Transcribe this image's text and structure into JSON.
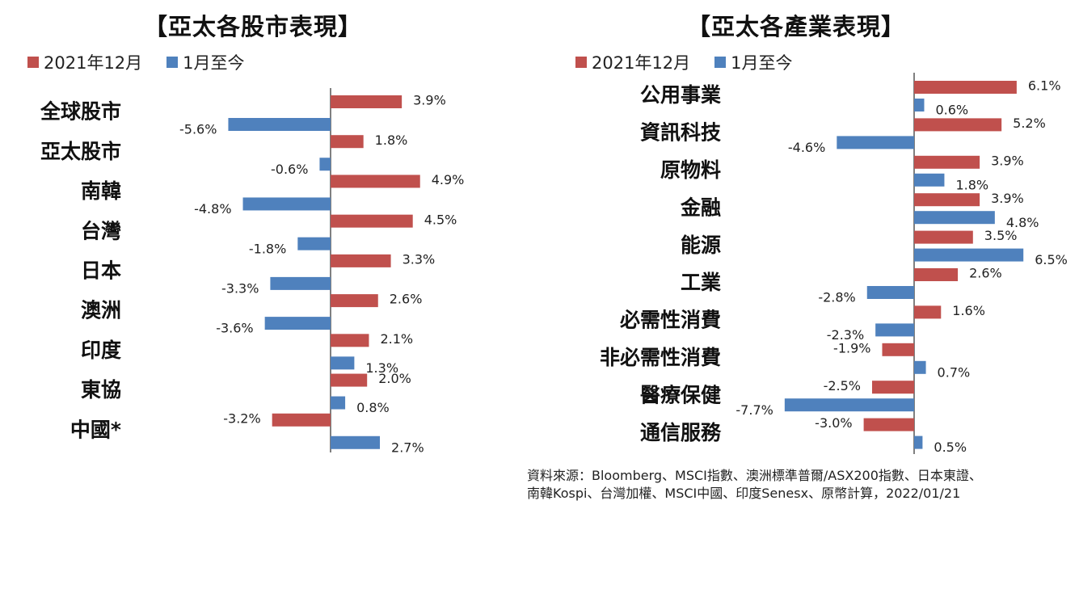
{
  "colors": {
    "series1": "#c0504d",
    "series2": "#4f81bd",
    "axis": "#808080"
  },
  "chart_data": [
    {
      "type": "bar",
      "orientation": "horizontal",
      "title": "【亞太各股市表現】",
      "categories": [
        "全球股市",
        "亞太股市",
        "南韓",
        "台灣",
        "日本",
        "澳洲",
        "印度",
        "東協",
        "中國*"
      ],
      "series": [
        {
          "name": "2021年12月",
          "values": [
            3.9,
            1.8,
            4.9,
            4.5,
            3.3,
            2.6,
            2.1,
            2.0,
            -3.2
          ],
          "labels": [
            "3.9%",
            "1.8%",
            "4.9%",
            "4.5%",
            "3.3%",
            "2.6%",
            "2.1%",
            "2.0%",
            "-3.2%"
          ]
        },
        {
          "name": "1月至今",
          "values": [
            -5.6,
            -0.6,
            -4.8,
            -1.8,
            -3.3,
            -3.6,
            1.3,
            0.8,
            2.7
          ],
          "labels": [
            "-5.6%",
            "-0.6%",
            "-4.8%",
            "-1.8%",
            "-3.3%",
            "-3.6%",
            "1.3%",
            "0.8%",
            "2.7%"
          ]
        }
      ],
      "legend_position": "top-left",
      "grid": false
    },
    {
      "type": "bar",
      "orientation": "horizontal",
      "title": "【亞太各產業表現】",
      "categories": [
        "公用事業",
        "資訊科技",
        "原物料",
        "金融",
        "能源",
        "工業",
        "必需性消費",
        "非必需性消費",
        "醫療保健",
        "通信服務"
      ],
      "series": [
        {
          "name": "2021年12月",
          "values": [
            6.1,
            5.2,
            3.9,
            3.9,
            3.5,
            2.6,
            1.6,
            -1.9,
            -2.5,
            -3.0
          ],
          "labels": [
            "6.1%",
            "5.2%",
            "3.9%",
            "3.9%",
            "3.5%",
            "2.6%",
            "1.6%",
            "-1.9%",
            "-2.5%",
            "-3.0%"
          ]
        },
        {
          "name": "1月至今",
          "values": [
            0.6,
            -4.6,
            1.8,
            4.8,
            6.5,
            -2.8,
            -2.3,
            0.7,
            -7.7,
            0.5
          ],
          "labels": [
            "0.6%",
            "-4.6%",
            "1.8%",
            "4.8%",
            "6.5%",
            "-2.8%",
            "-2.3%",
            "0.7%",
            "-7.7%",
            "0.5%"
          ]
        }
      ],
      "legend_position": "top-left",
      "grid": false
    }
  ],
  "source_note": {
    "line1": "資料來源：Bloomberg、MSCI指數、澳洲標準普爾/ASX200指數、日本東證、",
    "line2": "南韓Kospi、台灣加權、MSCI中國、印度Senesx、原幣計算，2022/01/21"
  }
}
